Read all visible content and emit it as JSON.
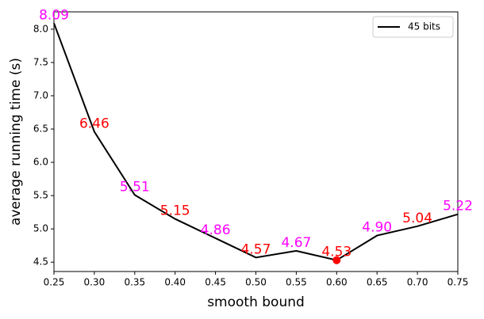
{
  "chart_data": {
    "type": "line",
    "xlabel": "smooth bound",
    "ylabel": "average running time (s)",
    "x": [
      0.25,
      0.3,
      0.35,
      0.4,
      0.45,
      0.5,
      0.55,
      0.6,
      0.65,
      0.7,
      0.75
    ],
    "series": [
      {
        "name": "45 bits",
        "color": "#000000",
        "values": [
          8.09,
          6.46,
          5.51,
          5.15,
          4.86,
          4.57,
          4.67,
          4.53,
          4.9,
          5.04,
          5.22
        ],
        "value_labels": [
          "8.09",
          "6.46",
          "5.51",
          "5.15",
          "4.86",
          "4.57",
          "4.67",
          "4.53",
          "4.90",
          "5.04",
          "5.22"
        ],
        "label_colors": [
          "#ff00ff",
          "#ff0000",
          "#ff00ff",
          "#ff0000",
          "#ff00ff",
          "#ff0000",
          "#ff00ff",
          "#ff0000",
          "#ff00ff",
          "#ff0000",
          "#ff00ff"
        ],
        "highlight": {
          "index": 7,
          "color": "#ff0000"
        }
      }
    ],
    "xlim": [
      0.25,
      0.75
    ],
    "ylim": [
      4.36,
      8.26
    ],
    "xticks": [
      0.25,
      {
        "value": 0.3,
        "label": "0.30"
      },
      0.35,
      {
        "value": 0.4,
        "label": "0.40"
      },
      0.45,
      {
        "value": 0.5,
        "label": "0.50"
      },
      0.55,
      {
        "value": 0.6,
        "label": "0.60"
      },
      0.65,
      {
        "value": 0.7,
        "label": "0.70"
      },
      0.75
    ],
    "yticks": [
      4.5,
      {
        "value": 5,
        "label": "5.0"
      },
      5.5,
      {
        "value": 6,
        "label": "6.0"
      },
      6.5,
      {
        "value": 7,
        "label": "7.0"
      },
      7.5,
      {
        "value": 8,
        "label": "8.0"
      }
    ],
    "legend": "upper right",
    "grid": false
  }
}
